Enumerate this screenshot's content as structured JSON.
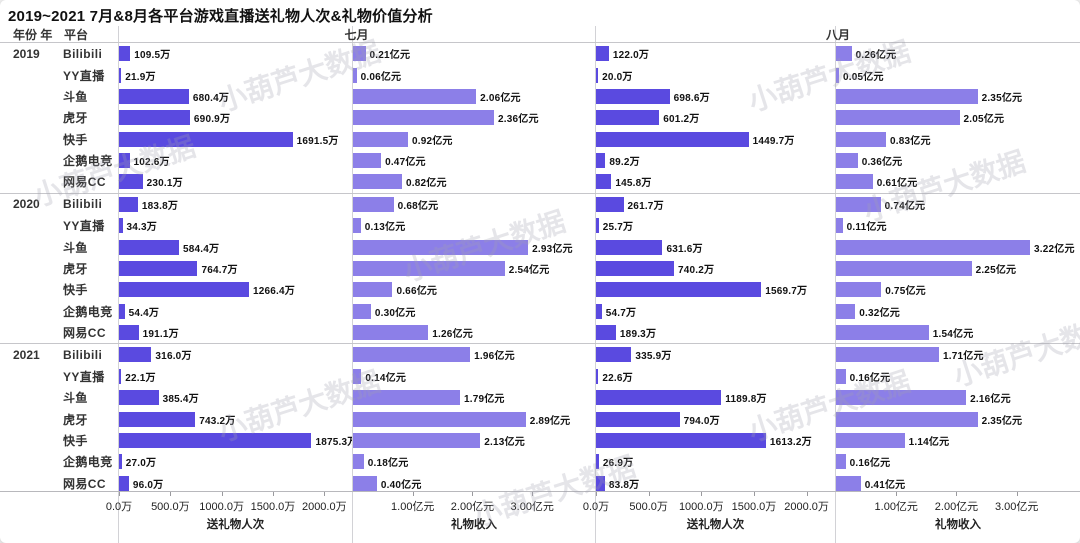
{
  "title": "2019~2021 7月&8月各平台游戏直播送礼物人次&礼物价值分析",
  "header": {
    "year_col": "年份 年",
    "platform_col": "平台",
    "july": "七月",
    "august": "八月"
  },
  "colors": {
    "count_bar": "#5a4ae0",
    "revenue_bar": "#8c7fe8"
  },
  "watermark_text": "小葫芦大数据",
  "chart_data": {
    "type": "bar",
    "orientation": "horizontal",
    "platforms": [
      "Bilibili",
      "YY直播",
      "斗鱼",
      "虎牙",
      "快手",
      "企鹅电竞",
      "网易CC"
    ],
    "groups": [
      {
        "year": "2019",
        "july_count": [
          109.5,
          21.9,
          680.4,
          690.9,
          1691.5,
          102.6,
          230.1
        ],
        "july_revenue": [
          0.21,
          0.06,
          2.06,
          2.36,
          0.92,
          0.47,
          0.82
        ],
        "august_count": [
          122.0,
          20.0,
          698.6,
          601.2,
          1449.7,
          89.2,
          145.8
        ],
        "august_revenue": [
          0.26,
          0.05,
          2.35,
          2.05,
          0.83,
          0.36,
          0.61
        ]
      },
      {
        "year": "2020",
        "july_count": [
          183.8,
          34.3,
          584.4,
          764.7,
          1266.4,
          54.4,
          191.1
        ],
        "july_revenue": [
          0.68,
          0.13,
          2.93,
          2.54,
          0.66,
          0.3,
          1.26
        ],
        "august_count": [
          261.7,
          25.7,
          631.6,
          740.2,
          1569.7,
          54.7,
          189.3
        ],
        "august_revenue": [
          0.74,
          0.11,
          3.22,
          2.25,
          0.75,
          0.32,
          1.54
        ]
      },
      {
        "year": "2021",
        "july_count": [
          316.0,
          22.1,
          385.4,
          743.2,
          1875.3,
          27.0,
          96.0
        ],
        "july_revenue": [
          1.96,
          0.14,
          1.79,
          2.89,
          2.13,
          0.18,
          0.4
        ],
        "august_count": [
          335.9,
          22.6,
          1189.8,
          794.0,
          1613.2,
          26.9,
          83.8
        ],
        "august_revenue": [
          1.71,
          0.16,
          2.16,
          2.35,
          1.14,
          0.16,
          0.41
        ]
      }
    ],
    "count_axis": {
      "label": "送礼物人次",
      "unit": "万",
      "ticks": [
        "0.0万",
        "500.0万",
        "1000.0万",
        "1500.0万",
        "2000.0万"
      ],
      "tick_values": [
        0,
        500,
        1000,
        1500,
        2000
      ],
      "max": 2270
    },
    "revenue_axis": {
      "label": "礼物收入",
      "unit": "亿元",
      "ticks": [
        "1.00亿元",
        "2.00亿元",
        "3.00亿元"
      ],
      "tick_values": [
        1,
        2,
        3
      ],
      "max": 4.05
    }
  }
}
